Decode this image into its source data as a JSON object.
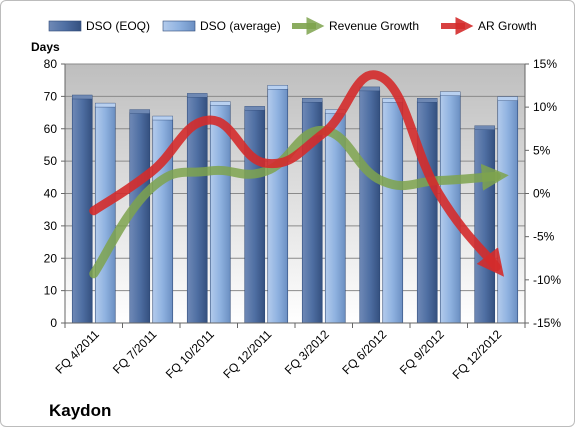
{
  "chart_data": {
    "type": "bar",
    "title": "",
    "company": "Kaydon",
    "ylabel_left": "Days",
    "categories": [
      "FQ 4/2011",
      "FQ 7/2011",
      "FQ 10/2011",
      "FQ 12/2011",
      "FQ 3/2012",
      "FQ 6/2012",
      "FQ 9/2012",
      "FQ 12/2012"
    ],
    "left_axis": {
      "min": 0,
      "max": 80,
      "ticks": [
        0,
        10,
        20,
        30,
        40,
        50,
        60,
        70,
        80
      ],
      "tick_labels": [
        "0",
        "10",
        "20",
        "30",
        "40",
        "50",
        "60",
        "70",
        "80"
      ]
    },
    "right_axis": {
      "min": -15,
      "max": 15,
      "ticks": [
        -15,
        -10,
        -5,
        0,
        5,
        10,
        15
      ],
      "tick_labels": [
        "-15%",
        "-10%",
        "-5%",
        "0%",
        "5%",
        "10%",
        "15%"
      ]
    },
    "bar_series": [
      {
        "name": "DSO (EOQ)",
        "axis": "left",
        "color": "#4f6fa3",
        "values": [
          69.5,
          65,
          70,
          66,
          68.5,
          72,
          68.5,
          60
        ]
      },
      {
        "name": "DSO (average)",
        "axis": "left",
        "color": "#8fb2e0",
        "values": [
          67,
          63,
          67.5,
          72.5,
          65,
          68.5,
          70.5,
          69
        ]
      }
    ],
    "line_series": [
      {
        "name": "Revenue Growth",
        "axis": "right",
        "color": "#7ea34e",
        "values": [
          -9.3,
          0.6,
          2.6,
          2.6,
          7.3,
          1.5,
          1.5,
          2.0
        ]
      },
      {
        "name": "AR Growth",
        "axis": "right",
        "color": "#d42b2b",
        "values": [
          -2,
          2.5,
          8.5,
          3.5,
          7,
          13.5,
          0,
          -8.5
        ]
      }
    ],
    "legend": {
      "position": "top",
      "items": [
        {
          "label": "DSO (EOQ)",
          "kind": "bar",
          "color": "#4f6fa3"
        },
        {
          "label": "DSO (average)",
          "kind": "bar",
          "color": "#8fb2e0"
        },
        {
          "label": "Revenue Growth",
          "kind": "arrow",
          "color": "#7ea34e"
        },
        {
          "label": "AR Growth",
          "kind": "arrow",
          "color": "#d42b2b"
        }
      ]
    },
    "grid": true
  }
}
